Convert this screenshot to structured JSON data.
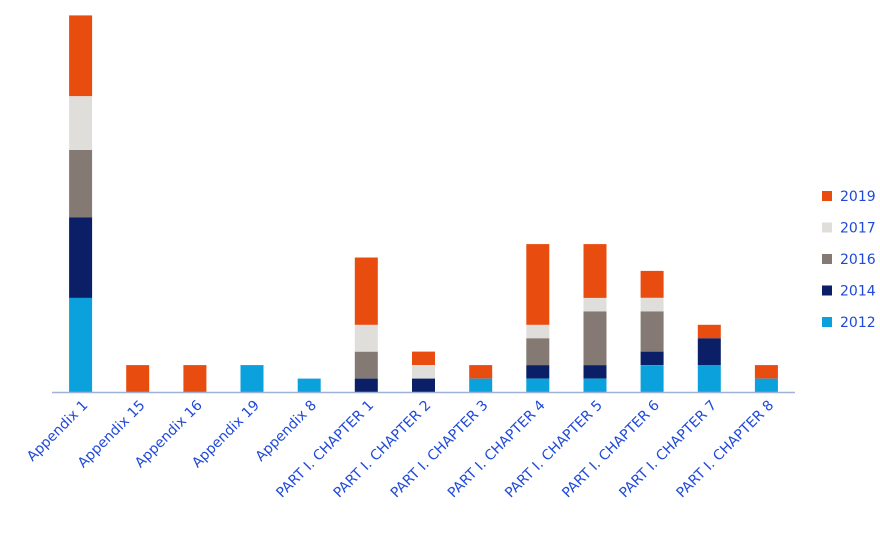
{
  "chart_data": {
    "type": "bar",
    "stacked": true,
    "categories": [
      "Appendix 1",
      "Appendix 15",
      "Appendix 16",
      "Appendix 19",
      "Appendix 8",
      "PART I. CHAPTER 1",
      "PART I. CHAPTER 2",
      "PART I. CHAPTER 3",
      "PART I. CHAPTER 4",
      "PART I. CHAPTER 5",
      "PART I. CHAPTER 6",
      "PART I. CHAPTER 7",
      "PART I. CHAPTER 8"
    ],
    "series": [
      {
        "name": "2012",
        "color": "#0aa1dc",
        "values": [
          7,
          0,
          0,
          2,
          1,
          0,
          0,
          1,
          1,
          1,
          2,
          2,
          1
        ]
      },
      {
        "name": "2014",
        "color": "#0b1f66",
        "values": [
          6,
          0,
          0,
          0,
          0,
          1,
          1,
          0,
          1,
          1,
          1,
          2,
          0
        ]
      },
      {
        "name": "2016",
        "color": "#857a73",
        "values": [
          5,
          0,
          0,
          0,
          0,
          2,
          0,
          0,
          2,
          4,
          3,
          0,
          0
        ]
      },
      {
        "name": "2017",
        "color": "#e0dedb",
        "values": [
          4,
          0,
          0,
          0,
          0,
          2,
          1,
          0,
          1,
          1,
          1,
          0,
          0
        ]
      },
      {
        "name": "2019",
        "color": "#e84c0f",
        "values": [
          6,
          2,
          2,
          0,
          0,
          5,
          1,
          1,
          6,
          4,
          2,
          1,
          1
        ]
      }
    ],
    "ylim": [
      0,
      28
    ],
    "legend_position": "right",
    "grid": false,
    "title": "",
    "xlabel": "",
    "ylabel": ""
  },
  "legend_order": [
    "2019",
    "2017",
    "2016",
    "2014",
    "2012"
  ],
  "colors": {
    "axis": "#9eb3d6",
    "label_text": "#1f49d9"
  }
}
